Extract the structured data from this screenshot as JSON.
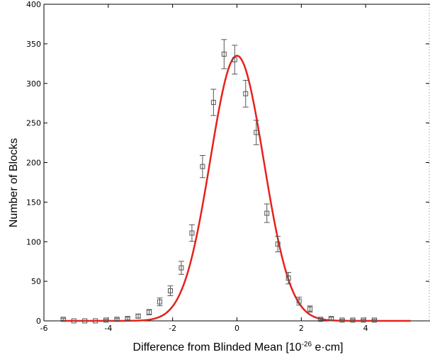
{
  "chart_data": {
    "type": "scatter",
    "title": "",
    "xlabel": {
      "prefix": "Difference from Blinded Mean [10",
      "exponent": "-26",
      "suffix": " e·cm]"
    },
    "ylabel": "Number of Blocks",
    "xlim": [
      -6,
      6
    ],
    "ylim": [
      0,
      400
    ],
    "xticks": [
      -6,
      -4,
      -2,
      0,
      2,
      4
    ],
    "yticks": [
      0,
      50,
      100,
      150,
      200,
      250,
      300,
      350,
      400
    ],
    "grid": false,
    "legend": "none",
    "series": [
      {
        "kind": "points-with-error-bars",
        "marker": "open-square",
        "color": "#555555",
        "x": [
          -5.4,
          -5.07,
          -4.73,
          -4.4,
          -4.07,
          -3.73,
          -3.4,
          -3.07,
          -2.73,
          -2.4,
          -2.07,
          -1.73,
          -1.4,
          -1.07,
          -0.73,
          -0.4,
          -0.07,
          0.27,
          0.6,
          0.93,
          1.27,
          1.6,
          1.93,
          2.27,
          2.6,
          2.93,
          3.27,
          3.6,
          3.93,
          4.27
        ],
        "y": [
          2,
          0,
          0,
          0,
          1,
          2,
          3,
          6,
          11,
          24,
          38,
          67,
          111,
          195,
          276,
          337,
          330,
          287,
          238,
          136,
          97,
          54,
          25,
          15,
          2,
          3,
          1,
          1,
          1,
          1
        ],
        "err": [
          1.4,
          0,
          0,
          0,
          1,
          1.4,
          1.7,
          2.4,
          3.3,
          4.9,
          6.2,
          8.2,
          10.5,
          14,
          16.6,
          18.4,
          18.2,
          16.9,
          15.4,
          11.7,
          9.8,
          7.3,
          5,
          3.9,
          1.4,
          1.7,
          1,
          1,
          1,
          1
        ]
      },
      {
        "kind": "gaussian-fit",
        "color": "#e8201a",
        "amplitude": 335,
        "mean": 0.0,
        "sigma": 0.83
      }
    ]
  }
}
